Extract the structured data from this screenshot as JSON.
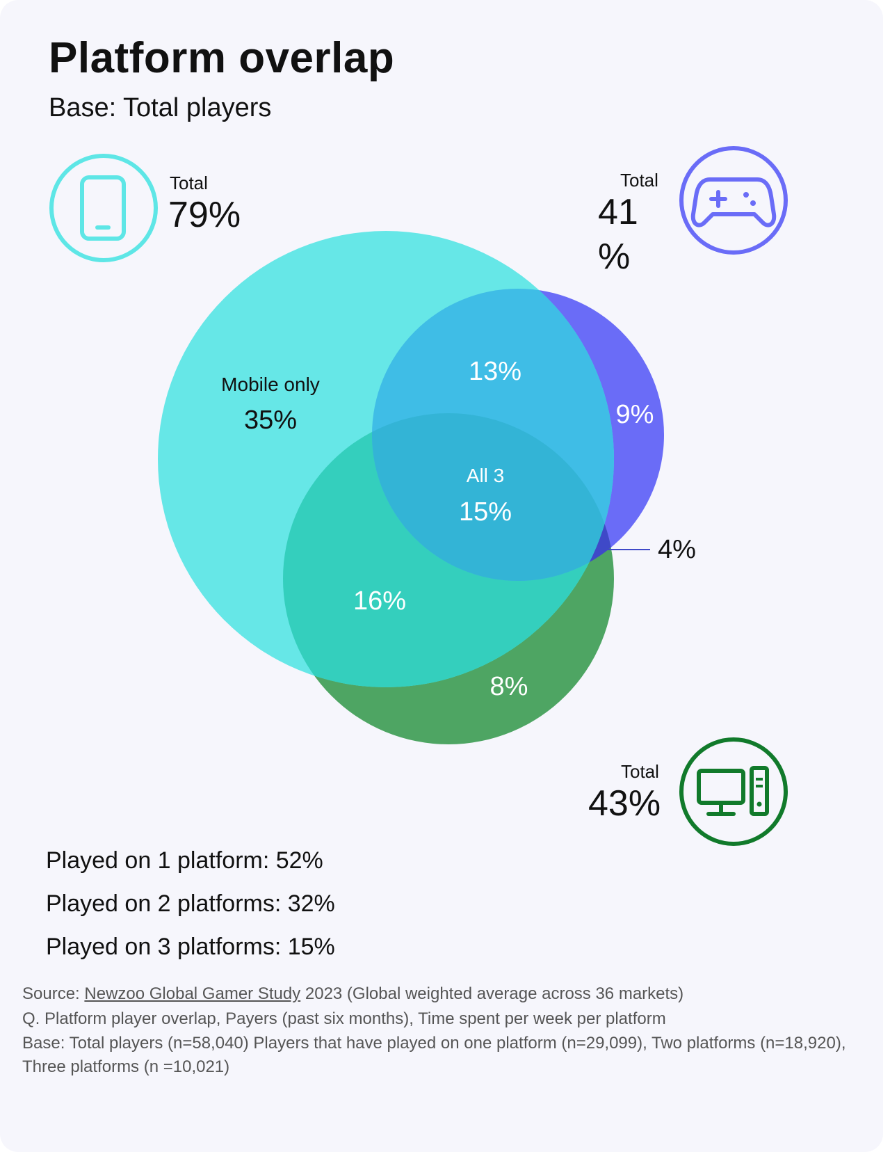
{
  "title": "Platform overlap",
  "subtitle": "Base: Total players",
  "colors": {
    "mobile": "#5ee6e6",
    "console": "#6a6cf7",
    "pc": "#2f9a4c",
    "mobile_icon": "#5ee6e6",
    "console_icon": "#6a6cf7",
    "pc_icon": "#117a2b"
  },
  "platforms": {
    "mobile": {
      "icon": "phone-icon",
      "total_label": "Total",
      "total_value": "79%"
    },
    "console": {
      "icon": "gamepad-icon",
      "total_label": "Total",
      "total_value_line1": "41",
      "total_value_line2": "%"
    },
    "pc": {
      "icon": "desktop-pc-icon",
      "total_label": "Total",
      "total_value": "43%"
    }
  },
  "venn": {
    "mobile_only_label": "Mobile only",
    "mobile_only": "35%",
    "mobile_console": "13%",
    "console_only": "9%",
    "all3_label": "All 3",
    "all3": "15%",
    "console_pc": "4%",
    "mobile_pc": "16%",
    "pc_only": "8%"
  },
  "summary": [
    "Played on 1 platform: 52%",
    "Played on 2 platforms: 32%",
    "Played on 3 platforms: 15%"
  ],
  "footer": {
    "source_prefix": "Source: ",
    "source_link": "Newzoo Global Gamer Study",
    "source_suffix": " 2023 (Global weighted average across 36 markets)",
    "question": "Q. Platform player overlap, Payers (past six months), Time spent per week per platform",
    "base": "Base: Total players (n=58,040) Players that have played on one platform (n=29,099), Two platforms (n=18,920), Three platforms (n =10,021)"
  }
}
